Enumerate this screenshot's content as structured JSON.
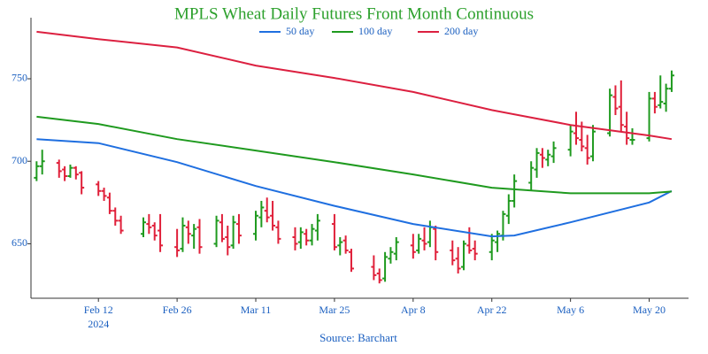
{
  "chart_data": {
    "type": "ohlc",
    "title": "MPLS Wheat Daily Futures Front Month Continuous",
    "source": "Source: Barchart",
    "x_year_label": "2024",
    "up_color": "#1f9a1f",
    "down_color": "#e0203a",
    "x": [
      "2024-02-01",
      "2024-02-02",
      "2024-02-05",
      "2024-02-06",
      "2024-02-07",
      "2024-02-08",
      "2024-02-09",
      "2024-02-12",
      "2024-02-13",
      "2024-02-14",
      "2024-02-15",
      "2024-02-16",
      "2024-02-20",
      "2024-02-21",
      "2024-02-22",
      "2024-02-23",
      "2024-02-26",
      "2024-02-27",
      "2024-02-28",
      "2024-02-29",
      "2024-03-01",
      "2024-03-04",
      "2024-03-05",
      "2024-03-06",
      "2024-03-07",
      "2024-03-08",
      "2024-03-11",
      "2024-03-12",
      "2024-03-13",
      "2024-03-14",
      "2024-03-15",
      "2024-03-18",
      "2024-03-19",
      "2024-03-20",
      "2024-03-21",
      "2024-03-22",
      "2024-03-25",
      "2024-03-26",
      "2024-03-27",
      "2024-03-28",
      "2024-04-01",
      "2024-04-02",
      "2024-04-03",
      "2024-04-04",
      "2024-04-05",
      "2024-04-08",
      "2024-04-09",
      "2024-04-10",
      "2024-04-11",
      "2024-04-12",
      "2024-04-15",
      "2024-04-16",
      "2024-04-17",
      "2024-04-18",
      "2024-04-19",
      "2024-04-22",
      "2024-04-23",
      "2024-04-24",
      "2024-04-25",
      "2024-04-26",
      "2024-04-29",
      "2024-04-30",
      "2024-05-01",
      "2024-05-02",
      "2024-05-03",
      "2024-05-06",
      "2024-05-07",
      "2024-05-08",
      "2024-05-09",
      "2024-05-10",
      "2024-05-13",
      "2024-05-14",
      "2024-05-15",
      "2024-05-16",
      "2024-05-17",
      "2024-05-20",
      "2024-05-21",
      "2024-05-22",
      "2024-05-23",
      "2024-05-24"
    ],
    "open": [
      690,
      697,
      699,
      695,
      691,
      696,
      693,
      686,
      682,
      678,
      670,
      664,
      656,
      662,
      661,
      658,
      648,
      647,
      660,
      655,
      660,
      650,
      663,
      654,
      649,
      662,
      656,
      666,
      670,
      667,
      660,
      654,
      651,
      656,
      652,
      658,
      662,
      649,
      652,
      645,
      636,
      632,
      629,
      641,
      644,
      649,
      646,
      652,
      651,
      659,
      646,
      641,
      636,
      649,
      647,
      645,
      651,
      655,
      667,
      676,
      687,
      695,
      704,
      701,
      703,
      707,
      717,
      713,
      708,
      703,
      717,
      739,
      733,
      721,
      713,
      714,
      738,
      734,
      735,
      744
    ],
    "high": [
      700,
      707,
      701,
      697,
      698,
      697,
      694,
      688,
      684,
      681,
      672,
      667,
      666,
      668,
      663,
      668,
      659,
      666,
      664,
      662,
      665,
      667,
      668,
      661,
      667,
      668,
      670,
      676,
      678,
      676,
      664,
      660,
      660,
      659,
      662,
      668,
      668,
      654,
      655,
      647,
      643,
      635,
      645,
      648,
      654,
      656,
      656,
      660,
      664,
      661,
      652,
      648,
      652,
      660,
      652,
      656,
      658,
      670,
      680,
      692,
      700,
      708,
      708,
      707,
      712,
      722,
      730,
      724,
      716,
      722,
      744,
      746,
      749,
      730,
      720,
      742,
      742,
      752,
      747,
      755
    ],
    "low": [
      688,
      692,
      690,
      688,
      690,
      689,
      680,
      679,
      676,
      668,
      661,
      656,
      654,
      656,
      652,
      645,
      642,
      645,
      650,
      647,
      644,
      648,
      651,
      643,
      647,
      650,
      652,
      660,
      663,
      658,
      650,
      646,
      647,
      649,
      649,
      652,
      646,
      643,
      644,
      633,
      628,
      626,
      627,
      638,
      640,
      641,
      644,
      646,
      648,
      640,
      637,
      632,
      634,
      644,
      640,
      640,
      645,
      652,
      662,
      672,
      682,
      690,
      696,
      697,
      699,
      703,
      710,
      706,
      698,
      700,
      715,
      728,
      718,
      710,
      710,
      712,
      729,
      732,
      730,
      742
    ],
    "close": [
      697,
      700,
      694,
      691,
      696,
      692,
      684,
      682,
      679,
      670,
      664,
      658,
      663,
      660,
      655,
      649,
      646,
      661,
      656,
      659,
      648,
      664,
      653,
      648,
      663,
      655,
      667,
      672,
      666,
      661,
      653,
      650,
      657,
      652,
      659,
      664,
      648,
      651,
      646,
      635,
      631,
      628,
      642,
      645,
      651,
      645,
      653,
      650,
      660,
      645,
      640,
      635,
      650,
      646,
      644,
      652,
      656,
      668,
      676,
      688,
      696,
      705,
      702,
      704,
      708,
      718,
      714,
      709,
      702,
      718,
      740,
      732,
      722,
      714,
      713,
      738,
      733,
      736,
      744,
      752
    ],
    "series": [
      {
        "name": "50 day",
        "color": "#1f6fe0",
        "x": [
          "2024-02-01",
          "2024-02-12",
          "2024-02-26",
          "2024-03-11",
          "2024-03-25",
          "2024-04-08",
          "2024-04-22",
          "2024-04-26",
          "2024-05-06",
          "2024-05-20",
          "2024-05-24"
        ],
        "values": [
          713.4,
          711,
          699.5,
          685,
          673,
          662,
          654.5,
          655,
          663,
          675,
          682
        ]
      },
      {
        "name": "100 day",
        "color": "#1f9a1f",
        "x": [
          "2024-02-01",
          "2024-02-12",
          "2024-02-26",
          "2024-03-11",
          "2024-03-25",
          "2024-04-08",
          "2024-04-22",
          "2024-05-06",
          "2024-05-20",
          "2024-05-24"
        ],
        "values": [
          727,
          722.6,
          713.4,
          706.5,
          699.5,
          692,
          684,
          680.6,
          680.6,
          681.7
        ]
      },
      {
        "name": "200 day",
        "color": "#dc2040",
        "x": [
          "2024-02-01",
          "2024-02-12",
          "2024-02-26",
          "2024-03-11",
          "2024-03-25",
          "2024-04-08",
          "2024-04-22",
          "2024-05-06",
          "2024-05-20",
          "2024-05-24"
        ],
        "values": [
          778.5,
          774,
          769,
          758,
          750.5,
          742,
          731,
          722,
          715.6,
          713.4
        ]
      }
    ],
    "xlim": [
      "2024-01-31",
      "2024-05-27"
    ],
    "xticks": [
      {
        "value": "2024-02-12",
        "label": "Feb 12"
      },
      {
        "value": "2024-02-26",
        "label": "Feb 26"
      },
      {
        "value": "2024-03-11",
        "label": "Mar 11"
      },
      {
        "value": "2024-03-25",
        "label": "Mar 25"
      },
      {
        "value": "2024-04-08",
        "label": "Apr 8"
      },
      {
        "value": "2024-04-22",
        "label": "Apr 22"
      },
      {
        "value": "2024-05-06",
        "label": "May 6"
      },
      {
        "value": "2024-05-20",
        "label": "May 20"
      }
    ],
    "ylim": [
      617,
      787
    ],
    "yticks": [
      650,
      700,
      750
    ]
  }
}
